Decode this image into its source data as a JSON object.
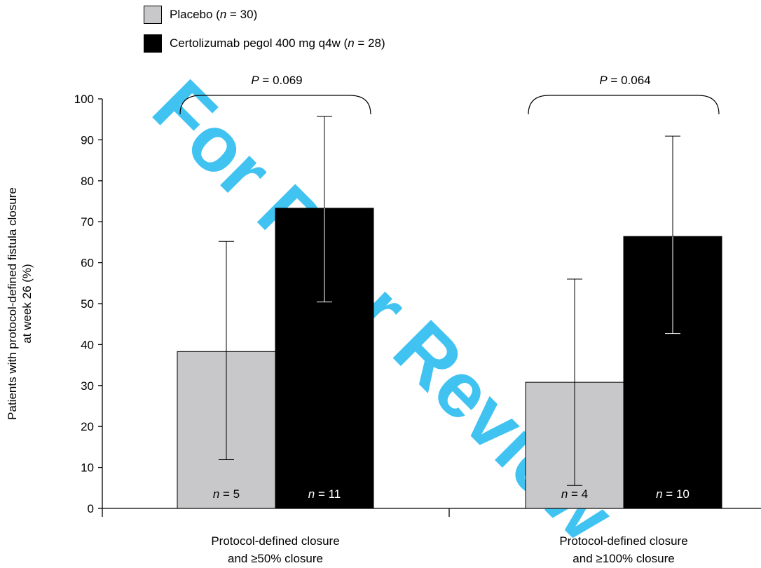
{
  "chart_data": {
    "type": "bar",
    "watermark": "For Peer Review",
    "categories": [
      {
        "line1": "Protocol-defined closure",
        "line2": "and ≥50% closure"
      },
      {
        "line1": "Protocol-defined closure",
        "line2": "and ≥100% closure"
      }
    ],
    "series": [
      {
        "name": "Placebo",
        "n_label": "n = 30",
        "color": "#c8c8ca",
        "values": [
          38.3,
          30.8
        ],
        "error_low": [
          11.9,
          5.6
        ],
        "error_high": [
          65.2,
          56.0
        ],
        "bar_labels": [
          "n = 5",
          "n = 4"
        ]
      },
      {
        "name": "Certolizumab pegol 400 mg q4w",
        "n_label": "n = 28",
        "color": "#000000",
        "values": [
          73.3,
          66.4
        ],
        "error_low": [
          50.4,
          42.7
        ],
        "error_high": [
          95.7,
          90.9
        ],
        "bar_labels": [
          "n = 11",
          "n = 10"
        ]
      }
    ],
    "p_values": [
      "P = 0.069",
      "P = 0.064"
    ],
    "ylabel_lines": [
      "Patients with protocol-defined fistula closure",
      "at week 26 (%)"
    ],
    "ylim": [
      0,
      100
    ],
    "yticks": [
      0,
      10,
      20,
      30,
      40,
      50,
      60,
      70,
      80,
      90,
      100
    ],
    "grid": false,
    "legend_position": "top-left"
  }
}
